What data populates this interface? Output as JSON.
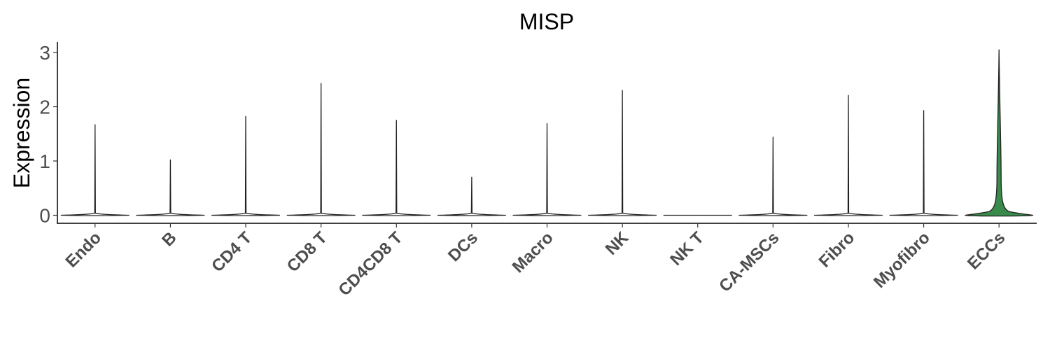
{
  "chart_data": {
    "type": "violin",
    "title": "MISP",
    "xlabel": "",
    "ylabel": "Expression",
    "ylim": [
      -0.15,
      3.2
    ],
    "yticks": [
      "0",
      "1",
      "2",
      "3"
    ],
    "grid": false,
    "legend": "none",
    "categories": [
      "Endo",
      "B",
      "CD4 T",
      "CD8 T",
      "CD4CD8 T",
      "DCs",
      "Macro",
      "NK",
      "NK T",
      "CA-MSCs",
      "Fibro",
      "Myofibro",
      "ECCs"
    ],
    "series": [
      {
        "max_values": [
          1.67,
          1.02,
          1.82,
          2.43,
          1.75,
          0.7,
          1.69,
          2.3,
          0.0,
          1.44,
          2.21,
          1.93,
          3.05
        ],
        "colors": [
          "#ffffff",
          "#ffffff",
          "#ffffff",
          "#ffffff",
          "#ffffff",
          "#ffffff",
          "#ffffff",
          "#ffffff",
          "#ffffff",
          "#ffffff",
          "#ffffff",
          "#ffffff",
          "#3a8a4c"
        ]
      }
    ]
  }
}
